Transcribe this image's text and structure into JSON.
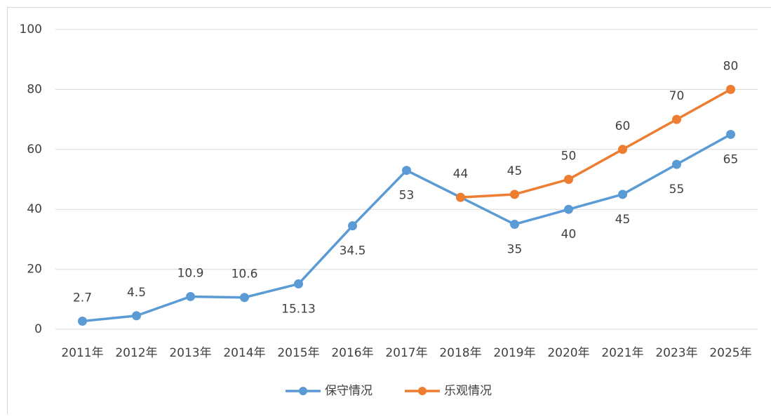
{
  "chart_data": {
    "type": "line",
    "categories": [
      "2011年",
      "2012年",
      "2013年",
      "2014年",
      "2015年",
      "2016年",
      "2017年",
      "2018年",
      "2019年",
      "2020年",
      "2021年",
      "2023年",
      "2025年"
    ],
    "series": [
      {
        "name": "保守情况",
        "color": "#5b9bd5",
        "values": [
          2.7,
          4.5,
          10.9,
          10.6,
          15.13,
          34.5,
          53,
          44,
          35,
          40,
          45,
          55,
          65
        ]
      },
      {
        "name": "乐观情况",
        "color": "#ed7d31",
        "values": [
          null,
          null,
          null,
          null,
          null,
          null,
          null,
          44,
          45,
          50,
          60,
          70,
          80
        ]
      }
    ],
    "ylim": [
      0,
      100
    ],
    "yticks": [
      0,
      20,
      40,
      60,
      80,
      100
    ],
    "grid": true,
    "legend": "bottom"
  }
}
